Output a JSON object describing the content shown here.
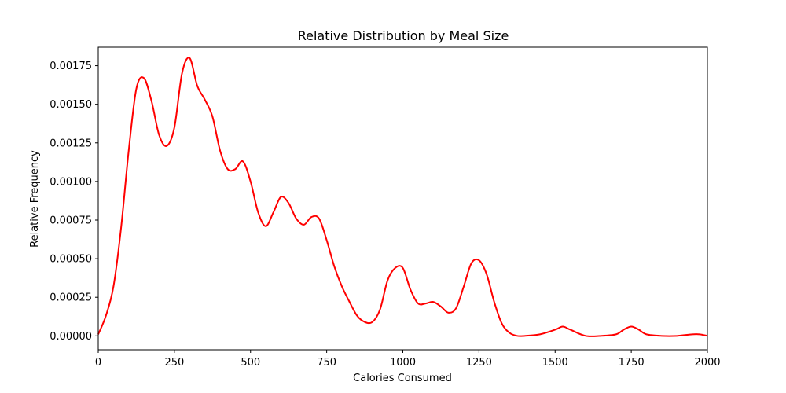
{
  "chart_data": {
    "type": "line",
    "title": "Relative Distribution by Meal Size",
    "xlabel": "Calories Consumed",
    "ylabel": "Relative Frequency",
    "xlim": [
      0,
      2000
    ],
    "ylim": [
      -9e-05,
      0.00187
    ],
    "xticks": [
      0,
      250,
      500,
      750,
      1000,
      1250,
      1500,
      1750,
      2000
    ],
    "xtick_labels": [
      "0",
      "250",
      "500",
      "750",
      "1000",
      "1250",
      "1500",
      "1750",
      "2000"
    ],
    "yticks": [
      0.0,
      0.00025,
      0.0005,
      0.00075,
      0.001,
      0.00125,
      0.0015,
      0.00175
    ],
    "ytick_labels": [
      "0.00000",
      "0.00025",
      "0.00050",
      "0.00075",
      "0.00100",
      "0.00125",
      "0.00150",
      "0.00175"
    ],
    "grid": false,
    "series": [
      {
        "color": "#ff0000",
        "x": [
          0,
          25,
          50,
          75,
          100,
          125,
          150,
          175,
          200,
          225,
          250,
          275,
          300,
          325,
          350,
          375,
          400,
          425,
          450,
          475,
          500,
          525,
          550,
          575,
          600,
          625,
          650,
          675,
          700,
          725,
          750,
          775,
          800,
          825,
          850,
          875,
          900,
          925,
          950,
          975,
          1000,
          1025,
          1050,
          1075,
          1100,
          1125,
          1150,
          1175,
          1200,
          1225,
          1250,
          1275,
          1300,
          1325,
          1350,
          1375,
          1400,
          1450,
          1500,
          1525,
          1550,
          1600,
          1650,
          1700,
          1725,
          1750,
          1775,
          1800,
          1850,
          1900,
          1950,
          1975,
          2000
        ],
        "y": [
          1e-05,
          0.00013,
          0.00032,
          0.0007,
          0.0012,
          0.0016,
          0.00167,
          0.00152,
          0.0013,
          0.00123,
          0.00135,
          0.0017,
          0.0018,
          0.00162,
          0.00153,
          0.00142,
          0.0012,
          0.00108,
          0.00108,
          0.00113,
          0.001,
          0.0008,
          0.00071,
          0.0008,
          0.0009,
          0.00086,
          0.00076,
          0.00072,
          0.00077,
          0.00076,
          0.00062,
          0.00045,
          0.00032,
          0.00022,
          0.00013,
          9e-05,
          9e-05,
          0.00017,
          0.00036,
          0.00044,
          0.00044,
          0.0003,
          0.00021,
          0.00021,
          0.00022,
          0.00019,
          0.00015,
          0.00018,
          0.00032,
          0.00047,
          0.00049,
          0.0004,
          0.00022,
          8e-05,
          2e-05,
          0.0,
          0.0,
          1e-05,
          4e-05,
          6e-05,
          4e-05,
          0.0,
          0.0,
          1e-05,
          4e-05,
          6e-05,
          4e-05,
          1e-05,
          0.0,
          0.0,
          1e-05,
          1e-05,
          0.0
        ]
      }
    ]
  }
}
